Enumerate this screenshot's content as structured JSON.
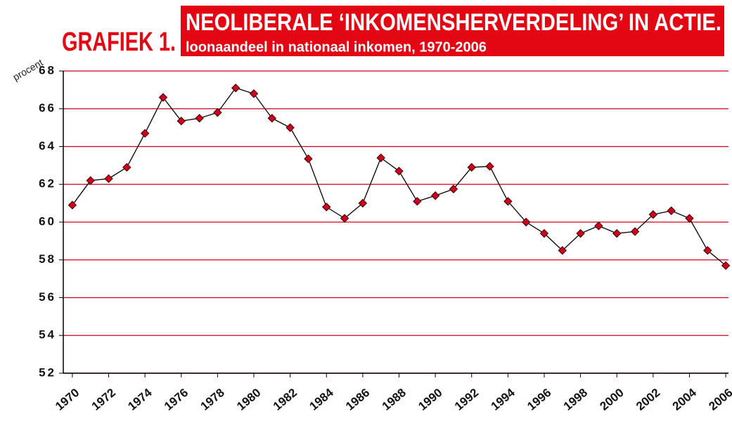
{
  "chart_data": {
    "type": "line",
    "heading": "GRAFIEK 1.",
    "title": "NEOLIBERALE ‘INKOMENSHERVERDELING’ IN ACTIE.",
    "subtitle": "loonaandeel in nationaal inkomen, 1970-2006",
    "y_label": "procent",
    "x": [
      1970,
      1971,
      1972,
      1973,
      1974,
      1975,
      1976,
      1977,
      1978,
      1979,
      1980,
      1981,
      1982,
      1983,
      1984,
      1985,
      1986,
      1987,
      1988,
      1989,
      1990,
      1991,
      1992,
      1993,
      1994,
      1995,
      1996,
      1997,
      1998,
      1999,
      2000,
      2001,
      2002,
      2003,
      2004,
      2005,
      2006
    ],
    "series": [
      {
        "name": "loonaandeel",
        "color": "#d0021b",
        "values": [
          60.9,
          62.2,
          62.3,
          62.9,
          64.7,
          66.6,
          65.35,
          65.5,
          65.8,
          67.1,
          66.8,
          65.5,
          65.0,
          63.35,
          60.8,
          60.2,
          61.0,
          63.4,
          62.7,
          61.1,
          61.4,
          61.75,
          62.9,
          62.95,
          61.1,
          60.0,
          59.4,
          58.5,
          59.4,
          59.8,
          59.4,
          59.5,
          60.4,
          60.6,
          60.2,
          58.5,
          57.7
        ]
      }
    ],
    "xlim": [
      1969.5,
      2006.5
    ],
    "xticks": [
      1970,
      1972,
      1974,
      1976,
      1978,
      1980,
      1982,
      1984,
      1986,
      1988,
      1990,
      1992,
      1994,
      1996,
      1998,
      2000,
      2002,
      2004,
      2006
    ],
    "ylim": [
      52,
      68
    ],
    "yticks": [
      52,
      54,
      56,
      58,
      60,
      62,
      64,
      66,
      68
    ],
    "grid": true,
    "grid_color": "#d0021b"
  }
}
